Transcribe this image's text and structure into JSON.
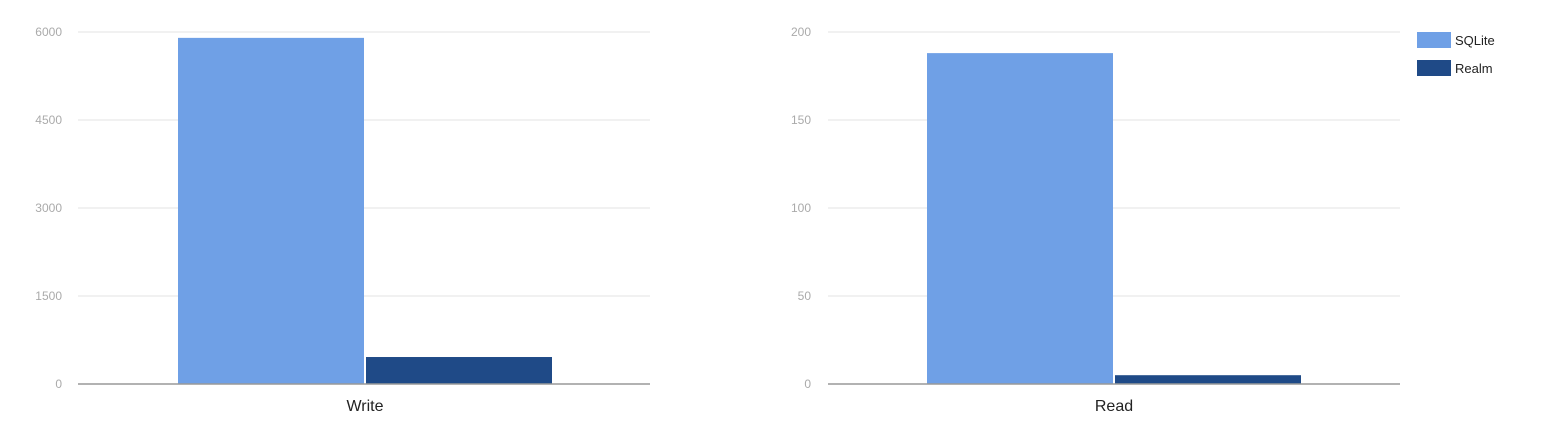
{
  "chart_data": [
    {
      "type": "bar",
      "categories": [
        "Write"
      ],
      "series": [
        {
          "name": "SQLite",
          "values": [
            5900
          ]
        },
        {
          "name": "Realm",
          "values": [
            460
          ]
        }
      ],
      "ylim": [
        0,
        6000
      ],
      "yticks": [
        0,
        1500,
        3000,
        4500,
        6000
      ],
      "xlabel": "",
      "ylabel": "",
      "grid": true
    },
    {
      "type": "bar",
      "categories": [
        "Read"
      ],
      "series": [
        {
          "name": "SQLite",
          "values": [
            188
          ]
        },
        {
          "name": "Realm",
          "values": [
            5
          ]
        }
      ],
      "ylim": [
        0,
        200
      ],
      "yticks": [
        0,
        50,
        100,
        150,
        200
      ],
      "xlabel": "",
      "ylabel": "",
      "grid": true
    }
  ],
  "legend": {
    "position": "top-right",
    "items": [
      {
        "label": "SQLite",
        "color": "#6fa0e6"
      },
      {
        "label": "Realm",
        "color": "#1f4a87"
      }
    ]
  },
  "colors": {
    "series": [
      "#6fa0e6",
      "#1f4a87"
    ],
    "grid": "#e3e3e3",
    "axis": "#999999",
    "tick_text": "#aaaaaa",
    "category_text": "#222222"
  }
}
